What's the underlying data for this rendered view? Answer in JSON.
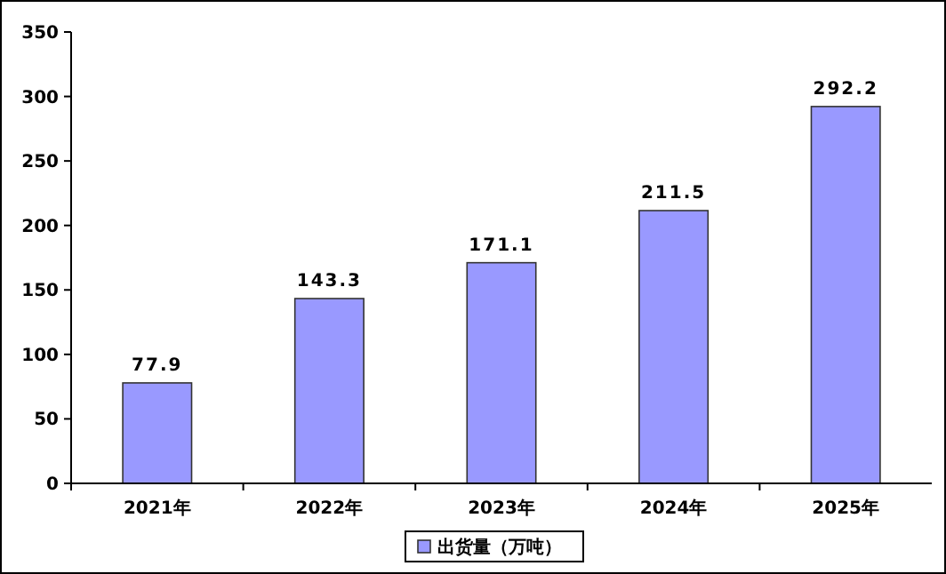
{
  "chart_data": {
    "type": "bar",
    "categories": [
      "2021年",
      "2022年",
      "2023年",
      "2024年",
      "2025年"
    ],
    "series": [
      {
        "name": "出货量（万吨）",
        "color": "#9999ff",
        "values": [
          77.9,
          143.3,
          171.1,
          211.5,
          292.2
        ]
      }
    ],
    "ylim": [
      0,
      350
    ],
    "yticks": [
      0,
      50,
      100,
      150,
      200,
      250,
      300,
      350
    ],
    "grid": false,
    "legend": "bottom",
    "value_labels": [
      "77.9",
      "143.3",
      "171.1",
      "211.5",
      "292.2"
    ]
  }
}
